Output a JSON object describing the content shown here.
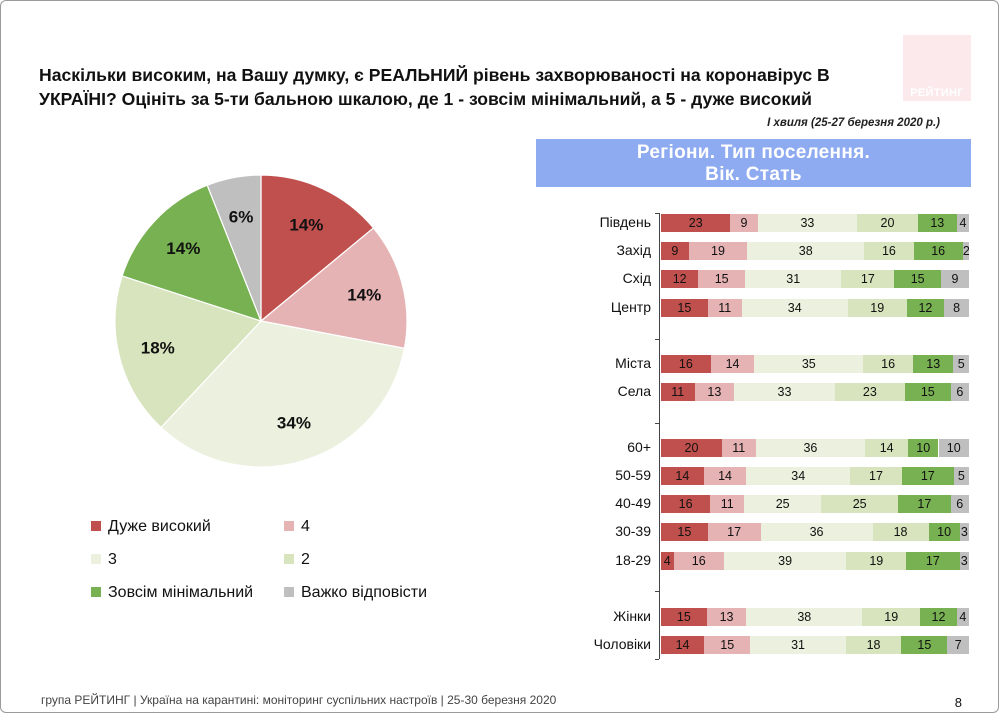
{
  "logo": {
    "text": "РЕЙТИНГ"
  },
  "question": "Наскільки високим, на Вашу думку, є РЕАЛЬНИЙ рівень захворюваності на коронавірус В УКРАЇНІ? Оцініть за 5-ти бальною шкалою, де 1 - зовсім мінімальний, а 5 - дуже високий",
  "wave_note": "І хвиля (25-27 березня 2020 р.)",
  "banner": {
    "line1": "Регіони. Тип поселення.",
    "line2": "Вік. Стать"
  },
  "colors": {
    "very_high": "#c0504d",
    "four": "#e6b3b5",
    "three": "#ebf1de",
    "two": "#d7e4bd",
    "minimal": "#77b151",
    "hard": "#bfbfbf",
    "banner": "#8eaaf0"
  },
  "chart_data": [
    {
      "type": "pie",
      "title": "",
      "slices": [
        {
          "label": "Дуже високий",
          "value": 14,
          "color": "#c0504d"
        },
        {
          "label": "4",
          "value": 14,
          "color": "#e6b3b5"
        },
        {
          "label": "3",
          "value": 34,
          "color": "#ebf1de"
        },
        {
          "label": "2",
          "value": 18,
          "color": "#d7e4bd"
        },
        {
          "label": "Зовсім мінімальний",
          "value": 14,
          "color": "#77b151"
        },
        {
          "label": "Важко відповісти",
          "value": 6,
          "color": "#bfbfbf"
        }
      ],
      "value_suffix": "%"
    },
    {
      "type": "bar",
      "orientation": "horizontal",
      "stacked": true,
      "categories": [
        "Південь",
        "Захід",
        "Схід",
        "Центр",
        "Міста",
        "Села",
        "60+",
        "50-59",
        "40-49",
        "30-39",
        "18-29",
        "Жінки",
        "Чоловіки"
      ],
      "groups": [
        [
          0,
          1,
          2,
          3
        ],
        [
          4,
          5
        ],
        [
          6,
          7,
          8,
          9,
          10
        ],
        [
          11,
          12
        ]
      ],
      "series": [
        {
          "name": "Дуже високий",
          "color": "#c0504d",
          "values": [
            23,
            9,
            12,
            15,
            16,
            11,
            20,
            14,
            16,
            15,
            4,
            15,
            14
          ]
        },
        {
          "name": "4",
          "color": "#e6b3b5",
          "values": [
            9,
            19,
            15,
            11,
            14,
            13,
            11,
            14,
            11,
            17,
            16,
            13,
            15
          ]
        },
        {
          "name": "3",
          "color": "#ebf1de",
          "values": [
            33,
            38,
            31,
            34,
            35,
            33,
            36,
            34,
            25,
            36,
            39,
            38,
            31
          ]
        },
        {
          "name": "2",
          "color": "#d7e4bd",
          "values": [
            20,
            16,
            17,
            19,
            16,
            23,
            14,
            17,
            25,
            18,
            19,
            19,
            18
          ]
        },
        {
          "name": "Зовсім мінімальний",
          "color": "#77b151",
          "values": [
            13,
            16,
            15,
            12,
            13,
            15,
            10,
            17,
            17,
            10,
            17,
            12,
            15
          ]
        },
        {
          "name": "Важко відповісти",
          "color": "#bfbfbf",
          "values": [
            4,
            2,
            9,
            8,
            5,
            6,
            10,
            5,
            6,
            3,
            3,
            4,
            7
          ]
        }
      ]
    }
  ],
  "legend": [
    {
      "label": "Дуже високий",
      "color": "#c0504d"
    },
    {
      "label": "4",
      "color": "#e6b3b5"
    },
    {
      "label": "3",
      "color": "#ebf1de"
    },
    {
      "label": "2",
      "color": "#d7e4bd"
    },
    {
      "label": "Зовсім мінімальний",
      "color": "#77b151"
    },
    {
      "label": "Важко відповісти",
      "color": "#bfbfbf"
    }
  ],
  "footer": "група РЕЙТИНГ  |  Україна на карантині: моніторинг суспільних настроїв  |  25-30 березня 2020",
  "page_number": "8"
}
